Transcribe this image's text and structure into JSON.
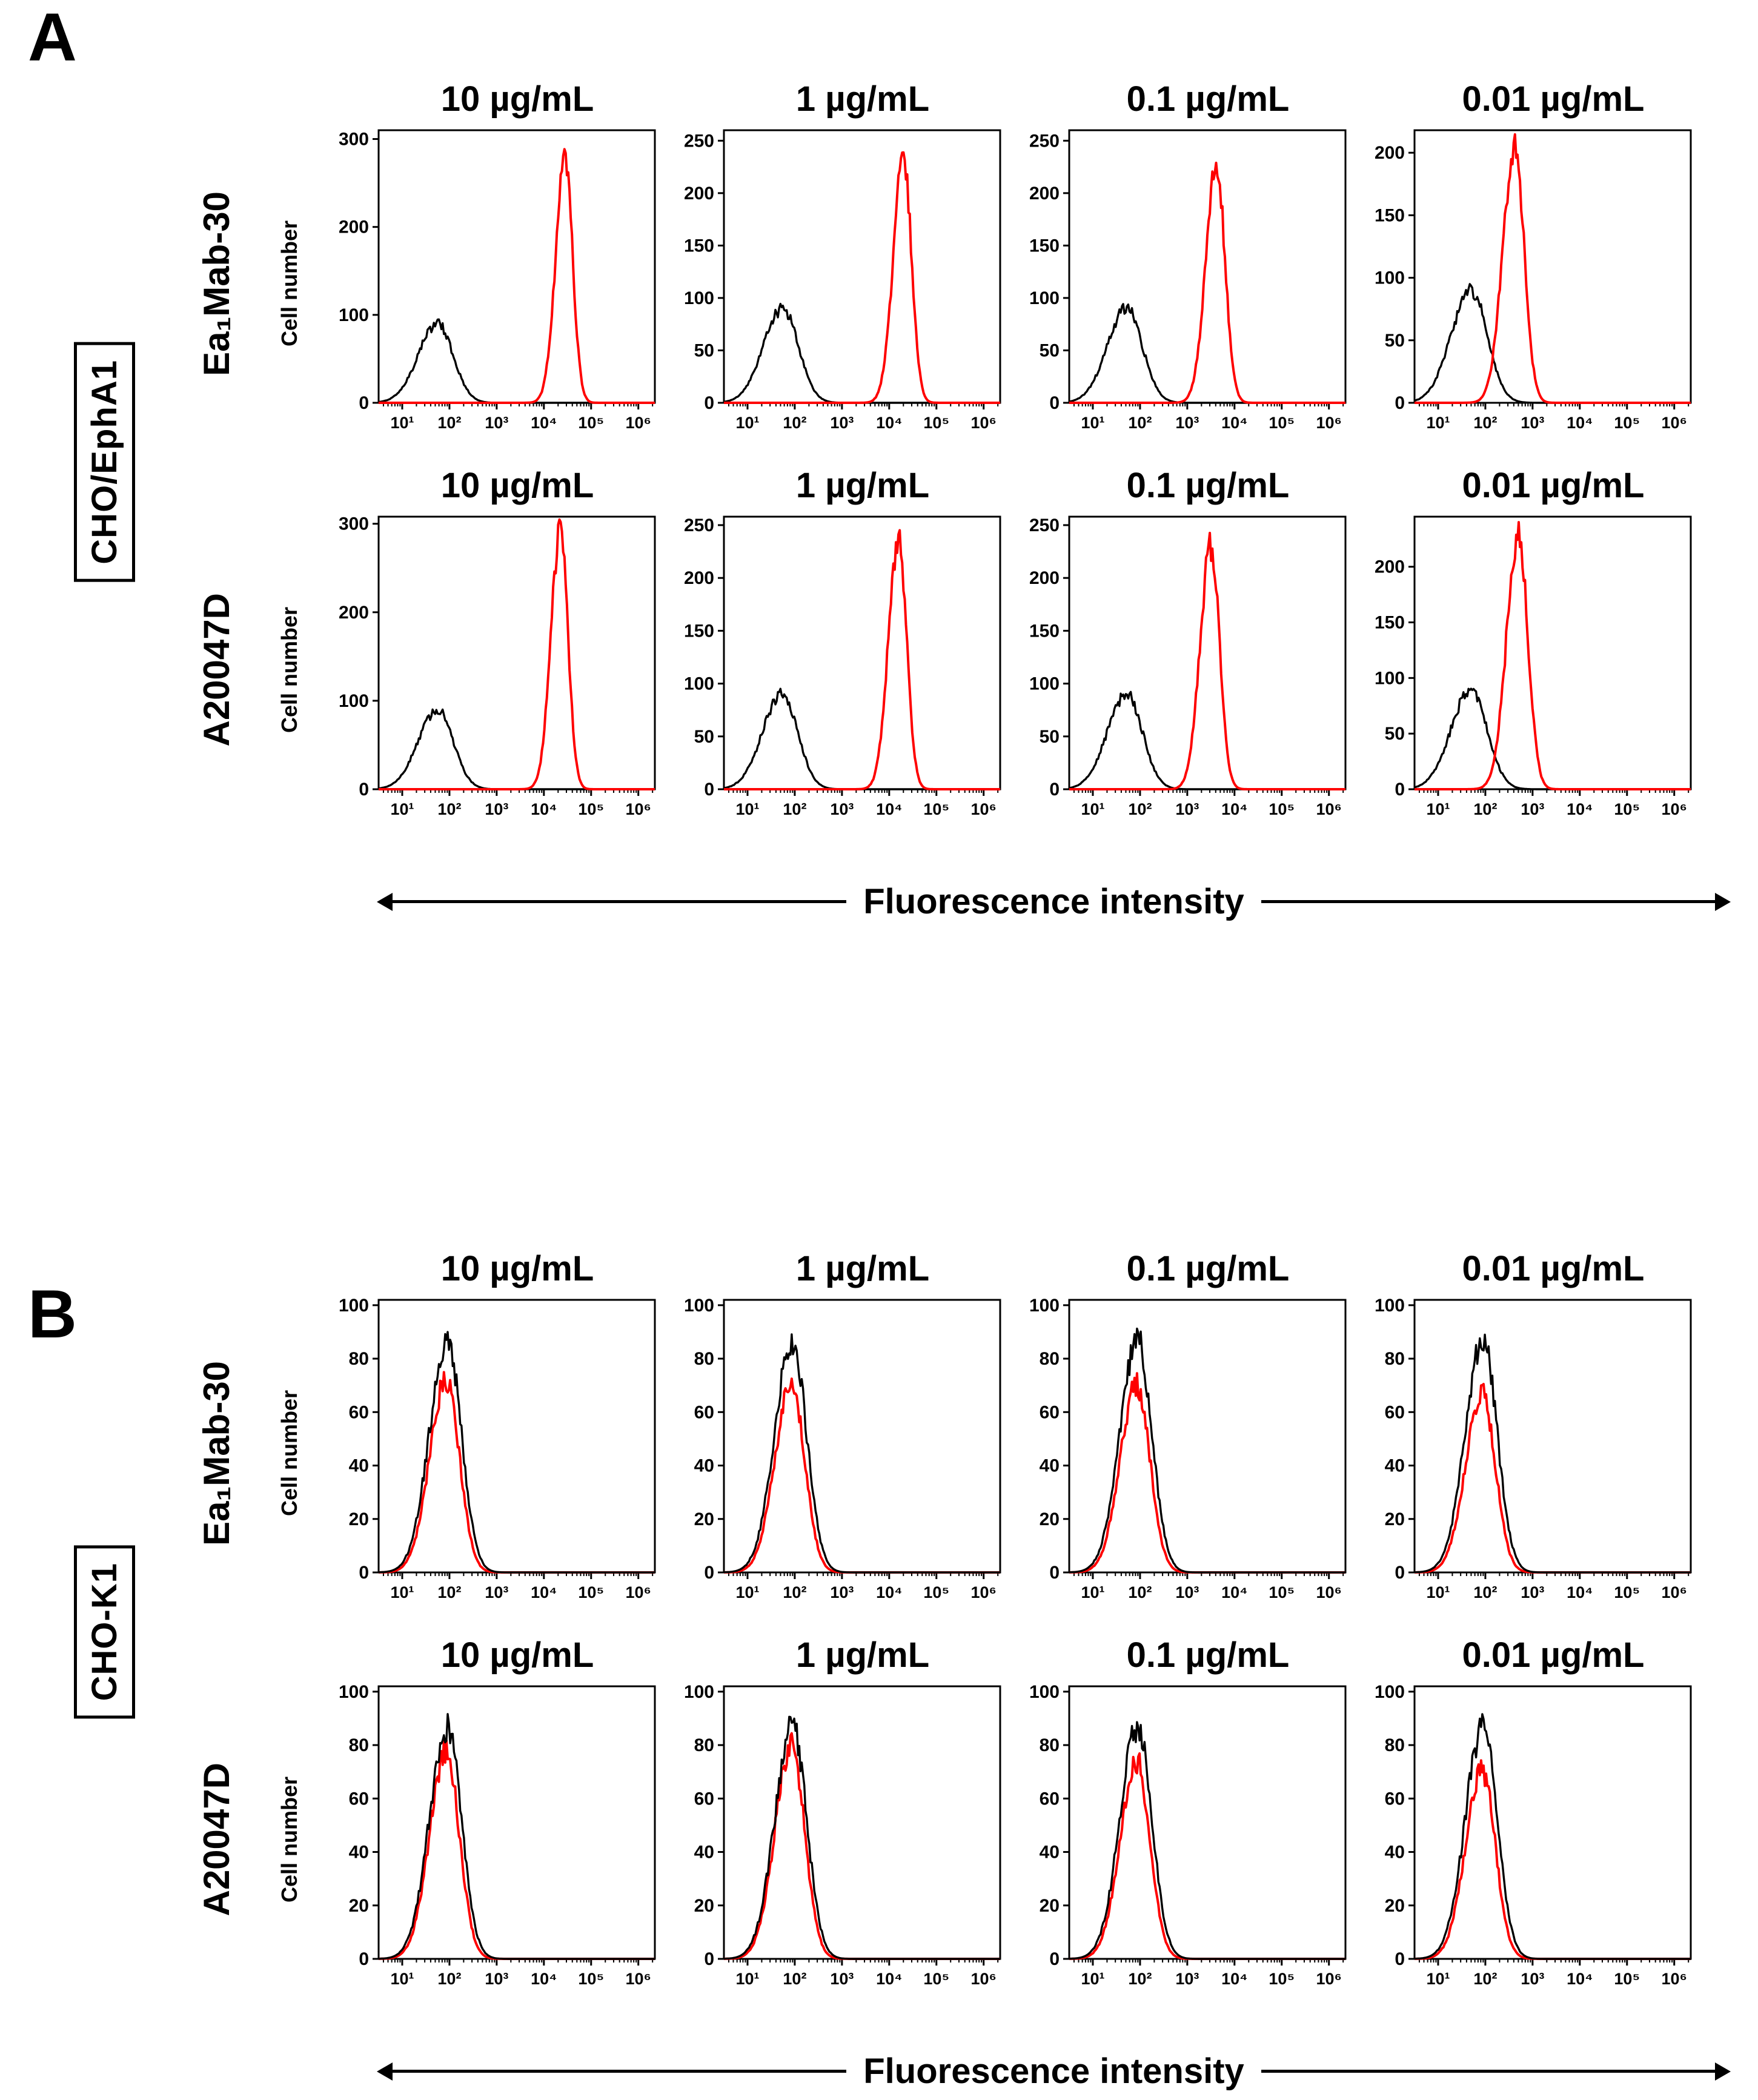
{
  "chart_data": [
    {
      "type": "line",
      "panel": "A",
      "cell_line": "CHO/EphA1",
      "xlabel": "Fluorescence intensity",
      "ylabel": "Cell number",
      "x_scale": "log10",
      "x_log_range": [
        0.5,
        6.35
      ],
      "x_ticks": [
        "10¹",
        "10²",
        "10³",
        "10⁴",
        "10⁵",
        "10⁶"
      ],
      "rows": [
        {
          "antibody": "Ea₁Mab-30",
          "plots": [
            {
              "title": "10 µg/mL",
              "ymax": 310,
              "yticks": [
                0,
                100,
                200,
                300
              ],
              "series": [
                {
                  "name": "black",
                  "color": "#000000",
                  "peak_log": 1.75,
                  "peak_height": 90,
                  "sigma_log": 0.33
                },
                {
                  "name": "red",
                  "color": "#fe0000",
                  "peak_log": 4.45,
                  "peak_height": 275,
                  "sigma_log": 0.16
                }
              ]
            },
            {
              "title": "1 µg/mL",
              "ymax": 260,
              "yticks": [
                0,
                50,
                100,
                150,
                200,
                250
              ],
              "series": [
                {
                  "name": "black",
                  "color": "#000000",
                  "peak_log": 1.75,
                  "peak_height": 90,
                  "sigma_log": 0.33
                },
                {
                  "name": "red",
                  "color": "#fe0000",
                  "peak_log": 4.3,
                  "peak_height": 235,
                  "sigma_log": 0.17
                }
              ]
            },
            {
              "title": "0.1 µg/mL",
              "ymax": 260,
              "yticks": [
                0,
                50,
                100,
                150,
                200,
                250
              ],
              "series": [
                {
                  "name": "black",
                  "color": "#000000",
                  "peak_log": 1.72,
                  "peak_height": 90,
                  "sigma_log": 0.33
                },
                {
                  "name": "red",
                  "color": "#fe0000",
                  "peak_log": 3.62,
                  "peak_height": 225,
                  "sigma_log": 0.18
                }
              ]
            },
            {
              "title": "0.01 µg/mL",
              "ymax": 218,
              "yticks": [
                0,
                50,
                100,
                150,
                200
              ],
              "series": [
                {
                  "name": "black",
                  "color": "#000000",
                  "peak_log": 1.7,
                  "peak_height": 90,
                  "sigma_log": 0.34
                },
                {
                  "name": "red",
                  "color": "#fe0000",
                  "peak_log": 2.62,
                  "peak_height": 205,
                  "sigma_log": 0.2
                }
              ]
            }
          ]
        },
        {
          "antibody": "A20047D",
          "plots": [
            {
              "title": "10 µg/mL",
              "ymax": 308,
              "yticks": [
                0,
                100,
                200,
                300
              ],
              "series": [
                {
                  "name": "black",
                  "color": "#000000",
                  "peak_log": 1.75,
                  "peak_height": 90,
                  "sigma_log": 0.33
                },
                {
                  "name": "red",
                  "color": "#fe0000",
                  "peak_log": 4.35,
                  "peak_height": 290,
                  "sigma_log": 0.16
                }
              ]
            },
            {
              "title": "1 µg/mL",
              "ymax": 258,
              "yticks": [
                0,
                50,
                100,
                150,
                200,
                250
              ],
              "series": [
                {
                  "name": "black",
                  "color": "#000000",
                  "peak_log": 1.73,
                  "peak_height": 90,
                  "sigma_log": 0.33
                },
                {
                  "name": "red",
                  "color": "#fe0000",
                  "peak_log": 4.2,
                  "peak_height": 240,
                  "sigma_log": 0.17
                }
              ]
            },
            {
              "title": "0.1 µg/mL",
              "ymax": 258,
              "yticks": [
                0,
                50,
                100,
                150,
                200,
                250
              ],
              "series": [
                {
                  "name": "black",
                  "color": "#000000",
                  "peak_log": 1.72,
                  "peak_height": 90,
                  "sigma_log": 0.33
                },
                {
                  "name": "red",
                  "color": "#fe0000",
                  "peak_log": 3.5,
                  "peak_height": 230,
                  "sigma_log": 0.18
                }
              ]
            },
            {
              "title": "0.01 µg/mL",
              "ymax": 245,
              "yticks": [
                0,
                50,
                100,
                150,
                200
              ],
              "series": [
                {
                  "name": "black",
                  "color": "#000000",
                  "peak_log": 1.7,
                  "peak_height": 90,
                  "sigma_log": 0.34
                },
                {
                  "name": "red",
                  "color": "#fe0000",
                  "peak_log": 2.7,
                  "peak_height": 228,
                  "sigma_log": 0.2
                }
              ]
            }
          ]
        }
      ]
    },
    {
      "type": "line",
      "panel": "B",
      "cell_line": "CHO-K1",
      "xlabel": "Fluorescence intensity",
      "ylabel": "Cell number",
      "x_scale": "log10",
      "x_log_range": [
        0.5,
        6.35
      ],
      "x_ticks": [
        "10¹",
        "10²",
        "10³",
        "10⁴",
        "10⁵",
        "10⁶"
      ],
      "rows": [
        {
          "antibody": "Ea₁Mab-30",
          "plots": [
            {
              "title": "10 µg/mL",
              "ymax": 102,
              "yticks": [
                0,
                20,
                40,
                60,
                80,
                100
              ],
              "series": [
                {
                  "name": "red",
                  "color": "#fe0000",
                  "peak_log": 1.93,
                  "peak_height": 72,
                  "sigma_log": 0.28
                },
                {
                  "name": "black",
                  "color": "#000000",
                  "peak_log": 1.95,
                  "peak_height": 87,
                  "sigma_log": 0.3
                }
              ]
            },
            {
              "title": "1 µg/mL",
              "ymax": 102,
              "yticks": [
                0,
                20,
                40,
                60,
                80,
                100
              ],
              "series": [
                {
                  "name": "red",
                  "color": "#fe0000",
                  "peak_log": 1.93,
                  "peak_height": 71,
                  "sigma_log": 0.28
                },
                {
                  "name": "black",
                  "color": "#000000",
                  "peak_log": 1.95,
                  "peak_height": 87,
                  "sigma_log": 0.3
                }
              ]
            },
            {
              "title": "0.1 µg/mL",
              "ymax": 102,
              "yticks": [
                0,
                20,
                40,
                60,
                80,
                100
              ],
              "series": [
                {
                  "name": "red",
                  "color": "#fe0000",
                  "peak_log": 1.93,
                  "peak_height": 70,
                  "sigma_log": 0.28
                },
                {
                  "name": "black",
                  "color": "#000000",
                  "peak_log": 1.95,
                  "peak_height": 87,
                  "sigma_log": 0.3
                }
              ]
            },
            {
              "title": "0.01 µg/mL",
              "ymax": 102,
              "yticks": [
                0,
                20,
                40,
                60,
                80,
                100
              ],
              "series": [
                {
                  "name": "red",
                  "color": "#fe0000",
                  "peak_log": 1.93,
                  "peak_height": 67,
                  "sigma_log": 0.28
                },
                {
                  "name": "black",
                  "color": "#000000",
                  "peak_log": 1.95,
                  "peak_height": 87,
                  "sigma_log": 0.3
                }
              ]
            }
          ]
        },
        {
          "antibody": "A20047D",
          "plots": [
            {
              "title": "10 µg/mL",
              "ymax": 102,
              "yticks": [
                0,
                20,
                40,
                60,
                80,
                100
              ],
              "series": [
                {
                  "name": "red",
                  "color": "#fe0000",
                  "peak_log": 1.93,
                  "peak_height": 78,
                  "sigma_log": 0.28
                },
                {
                  "name": "black",
                  "color": "#000000",
                  "peak_log": 1.95,
                  "peak_height": 87,
                  "sigma_log": 0.3
                }
              ]
            },
            {
              "title": "1 µg/mL",
              "ymax": 102,
              "yticks": [
                0,
                20,
                40,
                60,
                80,
                100
              ],
              "series": [
                {
                  "name": "red",
                  "color": "#fe0000",
                  "peak_log": 1.93,
                  "peak_height": 80,
                  "sigma_log": 0.28
                },
                {
                  "name": "black",
                  "color": "#000000",
                  "peak_log": 1.95,
                  "peak_height": 87,
                  "sigma_log": 0.3
                }
              ]
            },
            {
              "title": "0.1 µg/mL",
              "ymax": 102,
              "yticks": [
                0,
                20,
                40,
                60,
                80,
                100
              ],
              "series": [
                {
                  "name": "red",
                  "color": "#fe0000",
                  "peak_log": 1.93,
                  "peak_height": 74,
                  "sigma_log": 0.28
                },
                {
                  "name": "black",
                  "color": "#000000",
                  "peak_log": 1.95,
                  "peak_height": 87,
                  "sigma_log": 0.3
                }
              ]
            },
            {
              "title": "0.01 µg/mL",
              "ymax": 102,
              "yticks": [
                0,
                20,
                40,
                60,
                80,
                100
              ],
              "series": [
                {
                  "name": "red",
                  "color": "#fe0000",
                  "peak_log": 1.93,
                  "peak_height": 70,
                  "sigma_log": 0.28
                },
                {
                  "name": "black",
                  "color": "#000000",
                  "peak_log": 1.95,
                  "peak_height": 87,
                  "sigma_log": 0.3
                }
              ]
            }
          ]
        }
      ]
    }
  ]
}
